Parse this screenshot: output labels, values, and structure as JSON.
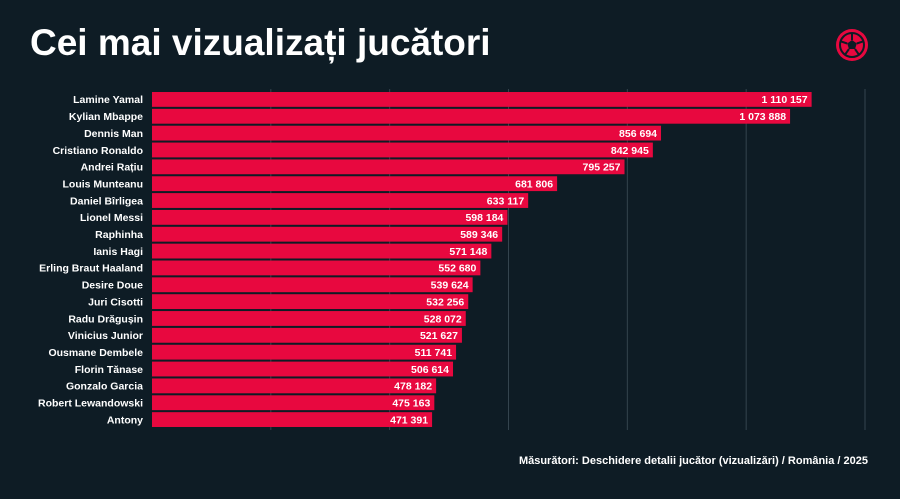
{
  "chart_data": {
    "type": "bar",
    "orientation": "horizontal",
    "title": "Cei mai vizualizați jucători",
    "footnote": "Măsurători: Deschidere detalii jucător (vizualizări) / România / 2025",
    "categories": [
      "Lamine Yamal",
      "Kylian Mbappe",
      "Dennis Man",
      "Cristiano Ronaldo",
      "Andrei Rațiu",
      "Louis Munteanu",
      "Daniel Bîrligea",
      "Lionel Messi",
      "Raphinha",
      "Ianis Hagi",
      "Erling Braut Haaland",
      "Desire Doue",
      "Juri Cisotti",
      "Radu Drăgușin",
      "Vinicius Junior",
      "Ousmane Dembele",
      "Florin Tănase",
      "Gonzalo Garcia",
      "Robert Lewandowski",
      "Antony"
    ],
    "values": [
      1110157,
      1073888,
      856694,
      842945,
      795257,
      681806,
      633117,
      598184,
      589346,
      571148,
      552680,
      539624,
      532256,
      528072,
      521627,
      511741,
      506614,
      478182,
      475163,
      471391
    ],
    "value_labels": [
      "1 110 157",
      "1 073 888",
      "856 694",
      "842 945",
      "795 257",
      "681 806",
      "633 117",
      "598 184",
      "589 346",
      "571 148",
      "552 680",
      "539 624",
      "532 256",
      "528 072",
      "521 627",
      "511 741",
      "506 614",
      "478 182",
      "475 163",
      "471 391"
    ],
    "color": "#e8083f",
    "xlim": [
      0,
      1200000
    ],
    "xticks": [
      200000,
      400000,
      600000,
      800000,
      1000000,
      1200000
    ],
    "grid": true
  }
}
